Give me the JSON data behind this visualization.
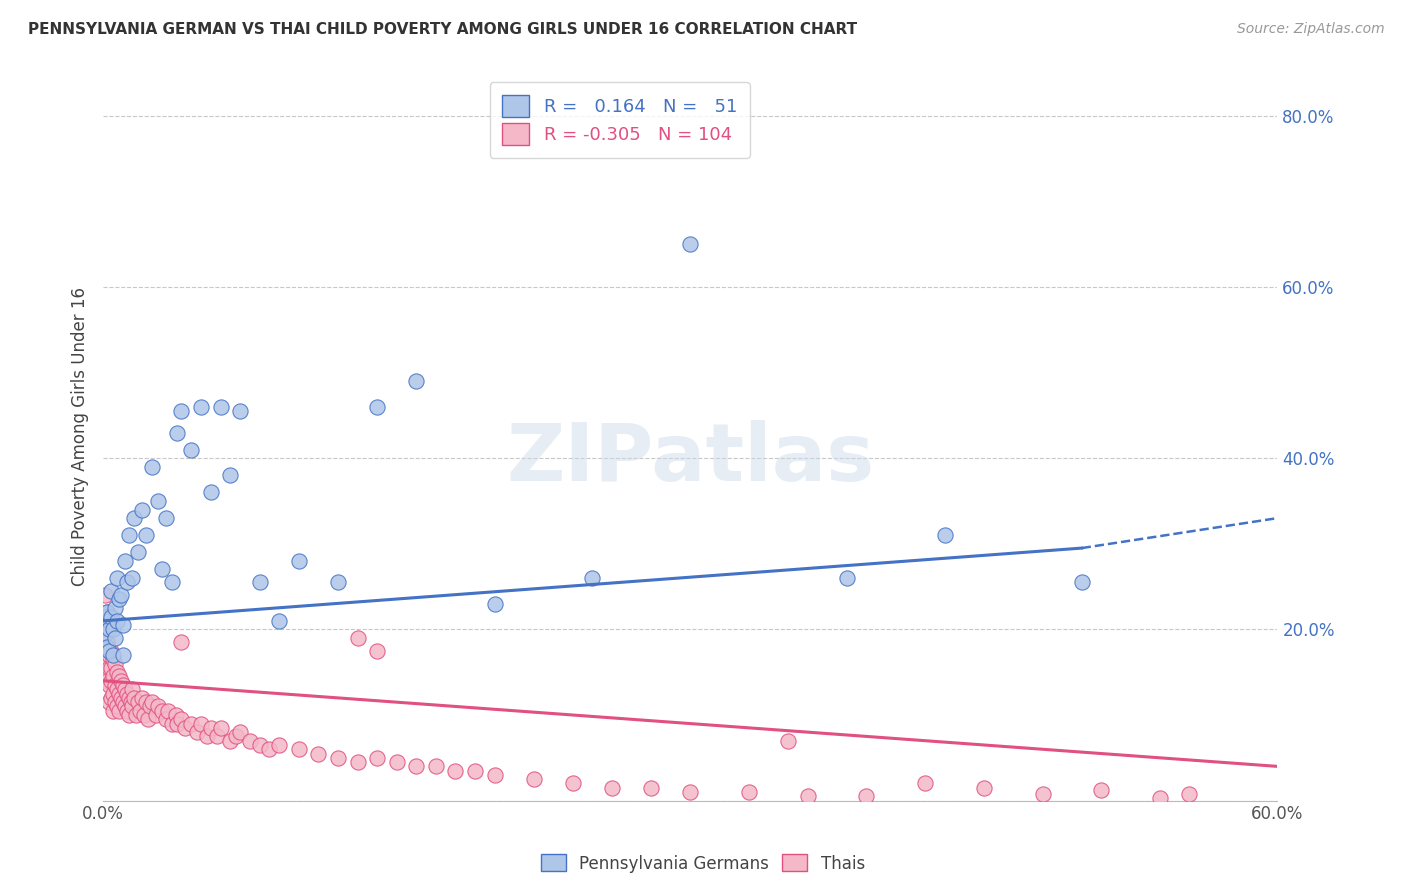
{
  "title": "PENNSYLVANIA GERMAN VS THAI CHILD POVERTY AMONG GIRLS UNDER 16 CORRELATION CHART",
  "source": "Source: ZipAtlas.com",
  "ylabel": "Child Poverty Among Girls Under 16",
  "right_yticks": [
    0.0,
    0.2,
    0.4,
    0.6,
    0.8
  ],
  "right_yticklabels": [
    "",
    "20.0%",
    "40.0%",
    "60.0%",
    "80.0%"
  ],
  "xlim": [
    0.0,
    0.6
  ],
  "ylim": [
    0.0,
    0.85
  ],
  "legend_entries": [
    "Pennsylvania Germans",
    "Thais"
  ],
  "r_pg": 0.164,
  "n_pg": 51,
  "r_thai": -0.305,
  "n_thai": 104,
  "color_pg": "#aec6e8",
  "color_thai": "#f4b8c8",
  "color_pg_line": "#4472c4",
  "color_thai_line": "#e05080",
  "watermark": "ZIPatlas",
  "pg_x": [
    0.001,
    0.001,
    0.002,
    0.002,
    0.003,
    0.003,
    0.004,
    0.004,
    0.005,
    0.005,
    0.006,
    0.006,
    0.007,
    0.007,
    0.008,
    0.009,
    0.01,
    0.01,
    0.011,
    0.012,
    0.013,
    0.015,
    0.016,
    0.018,
    0.02,
    0.022,
    0.025,
    0.028,
    0.03,
    0.032,
    0.035,
    0.038,
    0.04,
    0.045,
    0.05,
    0.055,
    0.06,
    0.065,
    0.07,
    0.08,
    0.09,
    0.1,
    0.12,
    0.14,
    0.16,
    0.2,
    0.25,
    0.3,
    0.38,
    0.43,
    0.5
  ],
  "pg_y": [
    0.195,
    0.215,
    0.18,
    0.22,
    0.2,
    0.175,
    0.215,
    0.245,
    0.2,
    0.17,
    0.225,
    0.19,
    0.21,
    0.26,
    0.235,
    0.24,
    0.205,
    0.17,
    0.28,
    0.255,
    0.31,
    0.26,
    0.33,
    0.29,
    0.34,
    0.31,
    0.39,
    0.35,
    0.27,
    0.33,
    0.255,
    0.43,
    0.455,
    0.41,
    0.46,
    0.36,
    0.46,
    0.38,
    0.455,
    0.255,
    0.21,
    0.28,
    0.255,
    0.46,
    0.49,
    0.23,
    0.26,
    0.65,
    0.26,
    0.31,
    0.255
  ],
  "thai_x": [
    0.001,
    0.001,
    0.001,
    0.002,
    0.002,
    0.002,
    0.002,
    0.003,
    0.003,
    0.003,
    0.003,
    0.004,
    0.004,
    0.004,
    0.004,
    0.005,
    0.005,
    0.005,
    0.005,
    0.006,
    0.006,
    0.006,
    0.007,
    0.007,
    0.007,
    0.008,
    0.008,
    0.008,
    0.009,
    0.009,
    0.01,
    0.01,
    0.011,
    0.011,
    0.012,
    0.012,
    0.013,
    0.013,
    0.014,
    0.015,
    0.015,
    0.016,
    0.017,
    0.018,
    0.019,
    0.02,
    0.021,
    0.022,
    0.023,
    0.024,
    0.025,
    0.027,
    0.028,
    0.03,
    0.032,
    0.033,
    0.035,
    0.037,
    0.038,
    0.04,
    0.042,
    0.045,
    0.048,
    0.05,
    0.053,
    0.055,
    0.058,
    0.06,
    0.065,
    0.068,
    0.07,
    0.075,
    0.08,
    0.085,
    0.09,
    0.1,
    0.11,
    0.12,
    0.13,
    0.14,
    0.15,
    0.16,
    0.17,
    0.18,
    0.19,
    0.2,
    0.22,
    0.24,
    0.26,
    0.28,
    0.3,
    0.33,
    0.36,
    0.39,
    0.42,
    0.45,
    0.48,
    0.51,
    0.54,
    0.555,
    0.13,
    0.14,
    0.04,
    0.35
  ],
  "thai_y": [
    0.24,
    0.205,
    0.175,
    0.22,
    0.185,
    0.16,
    0.14,
    0.17,
    0.155,
    0.135,
    0.115,
    0.175,
    0.155,
    0.14,
    0.12,
    0.165,
    0.145,
    0.125,
    0.105,
    0.16,
    0.135,
    0.115,
    0.15,
    0.13,
    0.11,
    0.145,
    0.125,
    0.105,
    0.14,
    0.12,
    0.135,
    0.115,
    0.13,
    0.11,
    0.125,
    0.105,
    0.12,
    0.1,
    0.115,
    0.13,
    0.11,
    0.12,
    0.1,
    0.115,
    0.105,
    0.12,
    0.1,
    0.115,
    0.095,
    0.11,
    0.115,
    0.1,
    0.11,
    0.105,
    0.095,
    0.105,
    0.09,
    0.1,
    0.09,
    0.095,
    0.085,
    0.09,
    0.08,
    0.09,
    0.075,
    0.085,
    0.075,
    0.085,
    0.07,
    0.075,
    0.08,
    0.07,
    0.065,
    0.06,
    0.065,
    0.06,
    0.055,
    0.05,
    0.045,
    0.05,
    0.045,
    0.04,
    0.04,
    0.035,
    0.035,
    0.03,
    0.025,
    0.02,
    0.015,
    0.015,
    0.01,
    0.01,
    0.005,
    0.005,
    0.02,
    0.015,
    0.008,
    0.012,
    0.003,
    0.008,
    0.19,
    0.175,
    0.185,
    0.07
  ],
  "pg_trend_x0": 0.0,
  "pg_trend_x_solid_end": 0.5,
  "pg_trend_x_dash_end": 0.6,
  "pg_trend_y0": 0.21,
  "pg_trend_y_solid_end": 0.295,
  "pg_trend_y_dash_end": 0.33,
  "thai_trend_x0": 0.0,
  "thai_trend_x_end": 0.6,
  "thai_trend_y0": 0.14,
  "thai_trend_y_end": 0.04
}
